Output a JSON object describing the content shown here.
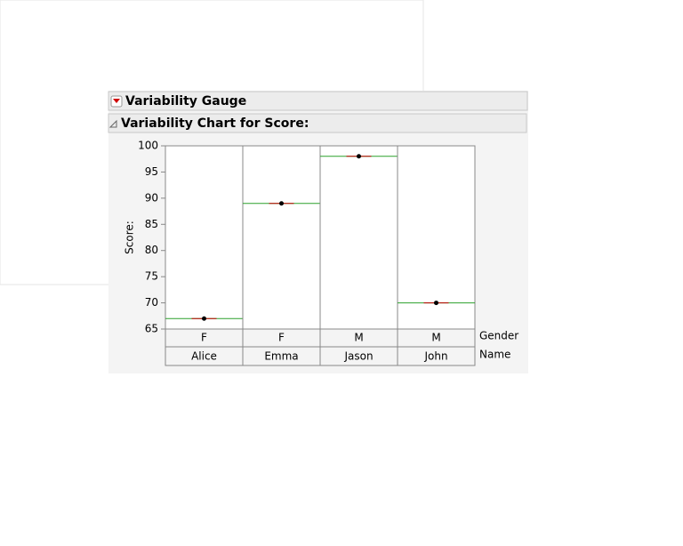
{
  "panel": {
    "title": "Variability Gauge",
    "subtitle": "Variability Chart for Score:"
  },
  "chart_data": {
    "type": "variability",
    "ylabel": "Score:",
    "categories": [
      "Alice",
      "Emma",
      "Jason",
      "John"
    ],
    "category_label": "Name",
    "groups": [
      "F",
      "F",
      "M",
      "M"
    ],
    "group_label": "Gender",
    "values": [
      67,
      89,
      98,
      70
    ],
    "ylim": [
      65,
      100
    ],
    "yticks": [
      65,
      70,
      75,
      80,
      85,
      90,
      95,
      100
    ],
    "mean_color": "#2ca02c",
    "point_color": "#000000"
  }
}
